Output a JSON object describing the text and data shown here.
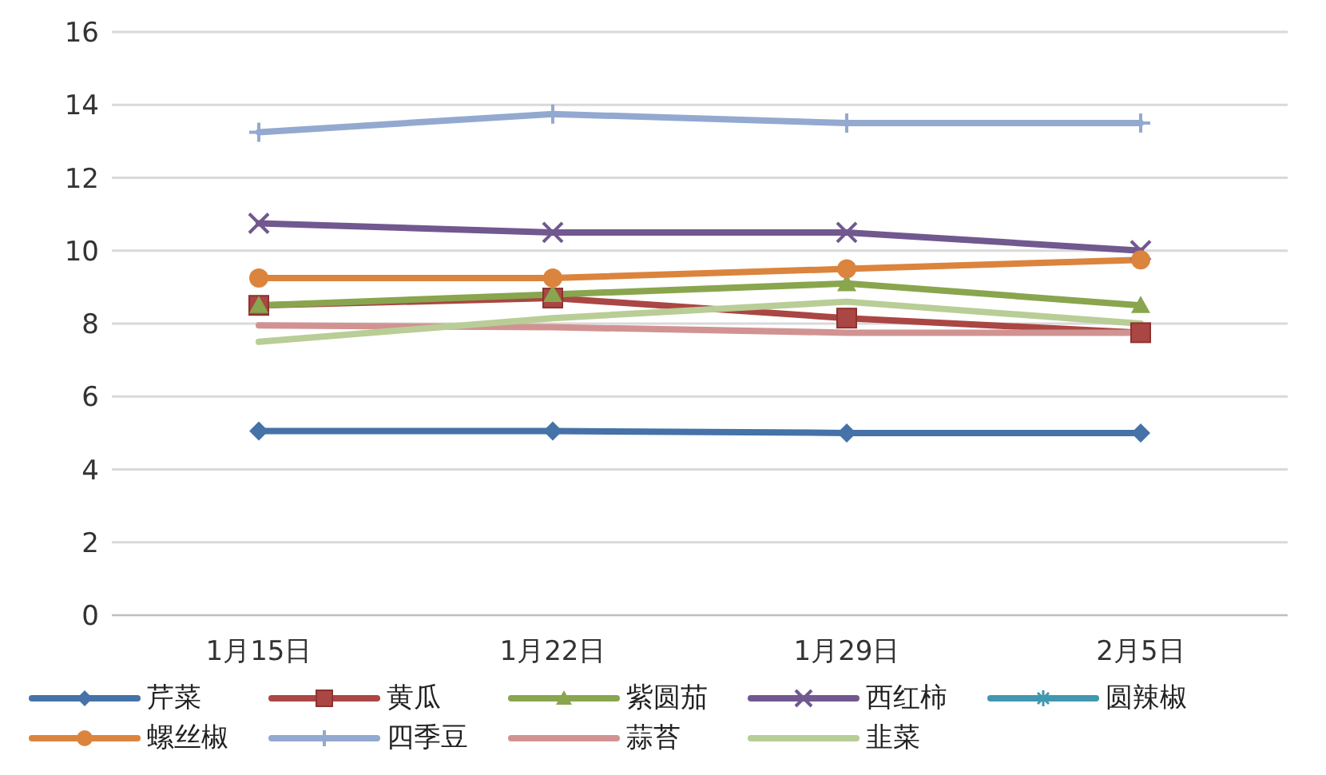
{
  "chart_data": {
    "type": "line",
    "categories": [
      "1月15日",
      "1月22日",
      "1月29日",
      "2月5日"
    ],
    "ylim": [
      0,
      16
    ],
    "yticks": [
      0,
      2,
      4,
      6,
      8,
      10,
      12,
      14,
      16
    ],
    "grid": "y",
    "legend": "bottom",
    "line_style": "solid",
    "series": [
      {
        "name": "芹菜",
        "color": "#4572a7",
        "marker": "diamond",
        "values": [
          5.05,
          5.05,
          5.0,
          5.0
        ]
      },
      {
        "name": "黄瓜",
        "color": "#aa4643",
        "marker": "square",
        "values": [
          8.5,
          8.7,
          8.15,
          7.75
        ]
      },
      {
        "name": "紫圆茄",
        "color": "#89a54e",
        "marker": "triangle",
        "values": [
          8.5,
          8.8,
          9.1,
          8.5
        ]
      },
      {
        "name": "西红柿",
        "color": "#71588f",
        "marker": "cross",
        "values": [
          10.75,
          10.5,
          10.5,
          10.0
        ]
      },
      {
        "name": "圆辣椒",
        "color": "#4198af",
        "marker": "star",
        "values": [
          null,
          null,
          null,
          null
        ]
      },
      {
        "name": "螺丝椒",
        "color": "#db843d",
        "marker": "circle",
        "values": [
          9.25,
          9.25,
          9.5,
          9.75
        ]
      },
      {
        "name": "四季豆",
        "color": "#93a9cf",
        "marker": "plus",
        "values": [
          13.25,
          13.75,
          13.5,
          13.5
        ]
      },
      {
        "name": "蒜苔",
        "color": "#d19392",
        "marker": "none",
        "values": [
          7.95,
          7.9,
          7.75,
          7.75
        ]
      },
      {
        "name": "韭菜",
        "color": "#b9cd96",
        "marker": "none",
        "values": [
          7.5,
          8.15,
          8.6,
          8.0
        ]
      }
    ]
  }
}
